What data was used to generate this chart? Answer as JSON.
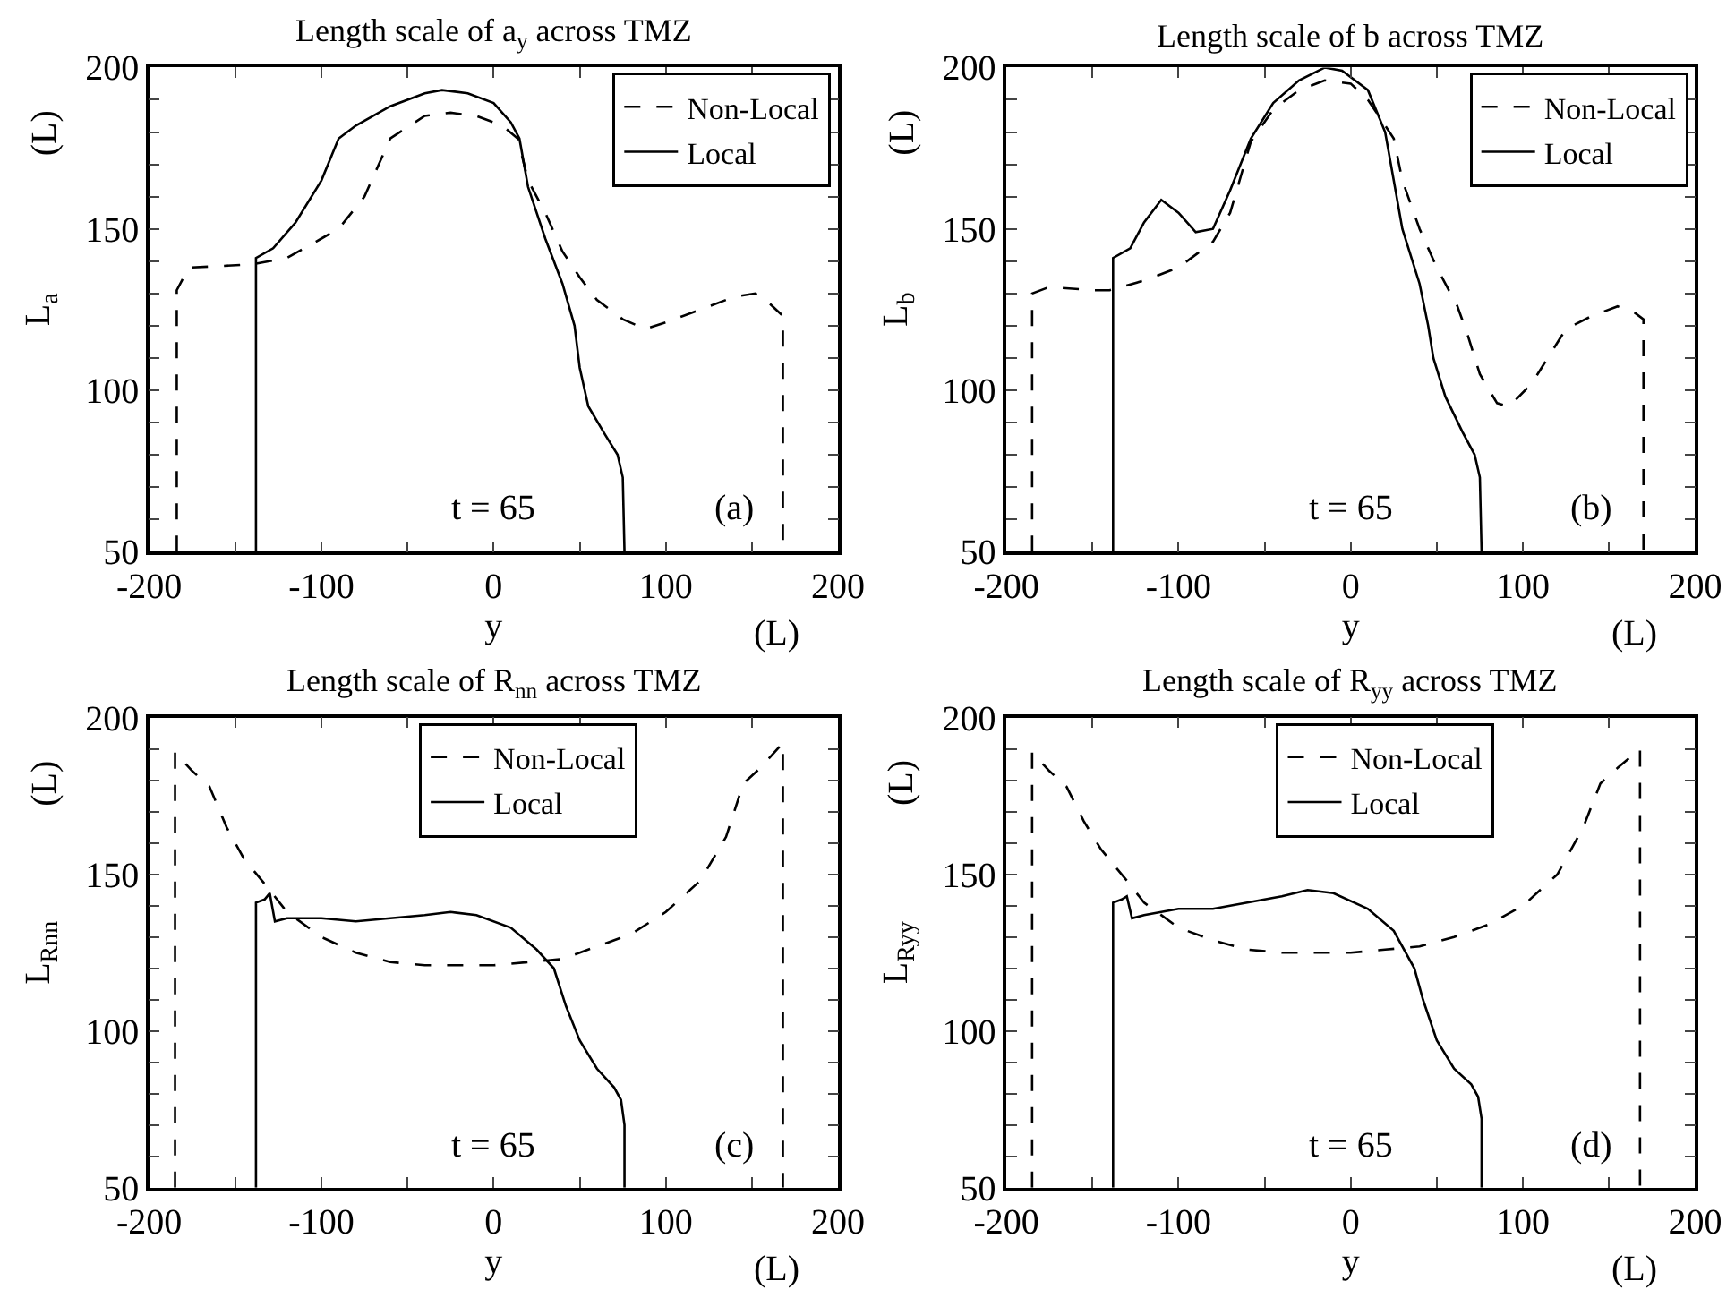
{
  "chart_data": [
    {
      "type": "line",
      "title": "Length scale of a$_{y}$ across TMZ",
      "xlabel": "y",
      "ylabel": "L$_{a}$",
      "annotations": [
        "(L)",
        "(L)",
        "t = 65",
        "(a)"
      ],
      "legend": "top right",
      "xlim": [
        -200,
        200
      ],
      "ylim": [
        50,
        200
      ],
      "xticks": [
        -200,
        {
          "value": -150,
          "label": null
        },
        -100,
        {
          "value": -50,
          "label": null
        },
        0,
        {
          "value": 50,
          "label": null
        },
        100,
        {
          "value": 150,
          "label": null
        },
        200
      ],
      "yticks": [
        50,
        {
          "value": 60,
          "label": null
        },
        {
          "value": 70,
          "label": null
        },
        {
          "value": 80,
          "label": null
        },
        {
          "value": 90,
          "label": null
        },
        100,
        {
          "value": 110,
          "label": null
        },
        {
          "value": 120,
          "label": null
        },
        {
          "value": 130,
          "label": null
        },
        {
          "value": 140,
          "label": null
        },
        150,
        {
          "value": 160,
          "label": null
        },
        {
          "value": 170,
          "label": null
        },
        {
          "value": 180,
          "label": null
        },
        {
          "value": 190,
          "label": null
        },
        200
      ],
      "series": [
        {
          "name": "Non-Local",
          "color": "#000000",
          "line_style": "dashed",
          "x": [
            -184,
            -184,
            -177,
            -140,
            -120,
            -100,
            -90,
            -75,
            -60,
            -40,
            -25,
            -10,
            5,
            14,
            20,
            30,
            40,
            50,
            60,
            75,
            88,
            100,
            120,
            140,
            152,
            160,
            168,
            168
          ],
          "values": [
            50,
            131,
            138,
            139,
            141,
            147,
            150,
            160,
            178,
            185,
            186,
            185,
            182,
            178,
            165,
            155,
            143,
            135,
            128,
            122,
            119,
            121,
            125,
            129,
            130,
            127,
            123,
            50
          ]
        },
        {
          "name": "Local",
          "color": "#000000",
          "line_style": "solid",
          "x": [
            -138,
            -138,
            -128,
            -115,
            -100,
            -90,
            -80,
            -60,
            -40,
            -30,
            -15,
            0,
            10,
            15,
            20,
            30,
            40,
            47,
            50,
            55,
            65,
            72,
            75,
            76
          ],
          "values": [
            50,
            141,
            144,
            152,
            165,
            178,
            182,
            188,
            192,
            193,
            192,
            189,
            183,
            178,
            163,
            147,
            133,
            120,
            107,
            95,
            86,
            80,
            73,
            50
          ]
        }
      ]
    },
    {
      "type": "line",
      "title": "Length scale of b across TMZ",
      "xlabel": "y",
      "ylabel": "L$_{b}$",
      "annotations": [
        "(L)",
        "(L)",
        "t = 65",
        "(b)"
      ],
      "legend": "top right",
      "xlim": [
        -200,
        200
      ],
      "ylim": [
        50,
        200
      ],
      "xticks": [
        -200,
        {
          "value": -150,
          "label": null
        },
        -100,
        {
          "value": -50,
          "label": null
        },
        0,
        {
          "value": 50,
          "label": null
        },
        100,
        {
          "value": 150,
          "label": null
        },
        200
      ],
      "yticks": [
        50,
        {
          "value": 60,
          "label": null
        },
        {
          "value": 70,
          "label": null
        },
        {
          "value": 80,
          "label": null
        },
        {
          "value": 90,
          "label": null
        },
        100,
        {
          "value": 110,
          "label": null
        },
        {
          "value": 120,
          "label": null
        },
        {
          "value": 130,
          "label": null
        },
        {
          "value": 140,
          "label": null
        },
        150,
        {
          "value": 160,
          "label": null
        },
        {
          "value": 170,
          "label": null
        },
        {
          "value": 180,
          "label": null
        },
        {
          "value": 190,
          "label": null
        },
        200
      ],
      "series": [
        {
          "name": "Non-Local",
          "color": "#000000",
          "line_style": "dashed",
          "x": [
            -185,
            -185,
            -175,
            -150,
            -140,
            -120,
            -100,
            -80,
            -70,
            -58,
            -45,
            -30,
            -15,
            0,
            10,
            20,
            25,
            30,
            40,
            50,
            62,
            68,
            75,
            85,
            92,
            105,
            125,
            140,
            155,
            165,
            170,
            170
          ],
          "values": [
            50,
            130,
            132,
            131,
            131,
            134,
            138,
            146,
            155,
            177,
            187,
            193,
            196,
            195,
            190,
            182,
            178,
            165,
            150,
            138,
            126,
            117,
            105,
            96,
            95,
            102,
            119,
            123,
            126,
            124,
            122,
            50
          ]
        },
        {
          "name": "Local",
          "color": "#000000",
          "line_style": "solid",
          "x": [
            -138,
            -138,
            -128,
            -120,
            -110,
            -100,
            -90,
            -80,
            -70,
            -58,
            -45,
            -30,
            -15,
            -5,
            10,
            20,
            25,
            30,
            40,
            45,
            48,
            55,
            65,
            72,
            75,
            76
          ],
          "values": [
            50,
            141,
            144,
            152,
            159,
            155,
            149,
            150,
            162,
            178,
            189,
            196,
            200,
            199,
            193,
            180,
            165,
            150,
            133,
            120,
            110,
            98,
            87,
            80,
            73,
            50
          ]
        }
      ]
    },
    {
      "type": "line",
      "title": "Length scale of R$_{nn}$ across TMZ",
      "xlabel": "y",
      "ylabel": "L$_{Rnn}$",
      "annotations": [
        "(L)",
        "(L)",
        "t = 65",
        "(c)"
      ],
      "legend": "top",
      "xlim": [
        -200,
        200
      ],
      "ylim": [
        50,
        200
      ],
      "xticks": [
        -200,
        {
          "value": -150,
          "label": null
        },
        -100,
        {
          "value": -50,
          "label": null
        },
        0,
        {
          "value": 50,
          "label": null
        },
        100,
        {
          "value": 150,
          "label": null
        },
        200
      ],
      "yticks": [
        50,
        {
          "value": 60,
          "label": null
        },
        {
          "value": 70,
          "label": null
        },
        {
          "value": 80,
          "label": null
        },
        {
          "value": 90,
          "label": null
        },
        100,
        {
          "value": 110,
          "label": null
        },
        {
          "value": 120,
          "label": null
        },
        {
          "value": 130,
          "label": null
        },
        {
          "value": 140,
          "label": null
        },
        150,
        {
          "value": 160,
          "label": null
        },
        {
          "value": 170,
          "label": null
        },
        {
          "value": 180,
          "label": null
        },
        {
          "value": 190,
          "label": null
        },
        200
      ],
      "series": [
        {
          "name": "Non-Local",
          "color": "#000000",
          "line_style": "dashed",
          "x": [
            -185,
            -185,
            -175,
            -165,
            -155,
            -145,
            -130,
            -120,
            -100,
            -80,
            -60,
            -40,
            -20,
            0,
            20,
            40,
            60,
            80,
            100,
            120,
            135,
            145,
            155,
            168,
            168
          ],
          "values": [
            50,
            189,
            183,
            178,
            165,
            155,
            145,
            138,
            130,
            125,
            122,
            121,
            121,
            121,
            122,
            123,
            127,
            131,
            138,
            148,
            162,
            179,
            184,
            192,
            50
          ]
        },
        {
          "name": "Local",
          "color": "#000000",
          "line_style": "solid",
          "x": [
            -138,
            -138,
            -133,
            -130,
            -127,
            -120,
            -100,
            -80,
            -60,
            -40,
            -25,
            -10,
            10,
            25,
            35,
            42,
            50,
            60,
            70,
            74,
            76,
            76
          ],
          "values": [
            50,
            141,
            142,
            144,
            135,
            136,
            136,
            135,
            136,
            137,
            138,
            137,
            133,
            126,
            120,
            108,
            97,
            88,
            82,
            78,
            70,
            50
          ]
        }
      ]
    },
    {
      "type": "line",
      "title": "Length scale of R$_{yy}$ across TMZ",
      "xlabel": "y",
      "ylabel": "L$_{Ryy}$",
      "annotations": [
        "(L)",
        "(L)",
        "t = 65",
        "(d)"
      ],
      "legend": "top",
      "xlim": [
        -200,
        200
      ],
      "ylim": [
        50,
        200
      ],
      "xticks": [
        -200,
        {
          "value": -150,
          "label": null
        },
        -100,
        {
          "value": -50,
          "label": null
        },
        0,
        {
          "value": 50,
          "label": null
        },
        100,
        {
          "value": 150,
          "label": null
        },
        200
      ],
      "yticks": [
        50,
        {
          "value": 60,
          "label": null
        },
        {
          "value": 70,
          "label": null
        },
        {
          "value": 80,
          "label": null
        },
        {
          "value": 90,
          "label": null
        },
        100,
        {
          "value": 110,
          "label": null
        },
        {
          "value": 120,
          "label": null
        },
        {
          "value": 130,
          "label": null
        },
        {
          "value": 140,
          "label": null
        },
        150,
        {
          "value": 160,
          "label": null
        },
        {
          "value": 170,
          "label": null
        },
        {
          "value": 180,
          "label": null
        },
        {
          "value": 190,
          "label": null
        },
        200
      ],
      "series": [
        {
          "name": "Non-Local",
          "color": "#000000",
          "line_style": "dashed",
          "x": [
            -185,
            -185,
            -175,
            -165,
            -155,
            -145,
            -130,
            -120,
            -100,
            -80,
            -60,
            -40,
            -20,
            0,
            20,
            40,
            60,
            80,
            100,
            120,
            135,
            145,
            155,
            168,
            168
          ],
          "values": [
            50,
            189,
            183,
            178,
            167,
            158,
            148,
            141,
            133,
            129,
            126,
            125,
            125,
            125,
            126,
            127,
            130,
            134,
            140,
            150,
            165,
            179,
            184,
            190,
            50
          ]
        },
        {
          "name": "Local",
          "color": "#000000",
          "line_style": "solid",
          "x": [
            -138,
            -138,
            -133,
            -130,
            -127,
            -120,
            -100,
            -80,
            -60,
            -40,
            -25,
            -10,
            10,
            25,
            37,
            42,
            50,
            60,
            70,
            74,
            76,
            76
          ],
          "values": [
            50,
            141,
            142,
            143,
            136,
            137,
            139,
            139,
            141,
            143,
            145,
            144,
            139,
            132,
            120,
            110,
            97,
            88,
            83,
            79,
            72,
            50
          ]
        }
      ]
    }
  ]
}
